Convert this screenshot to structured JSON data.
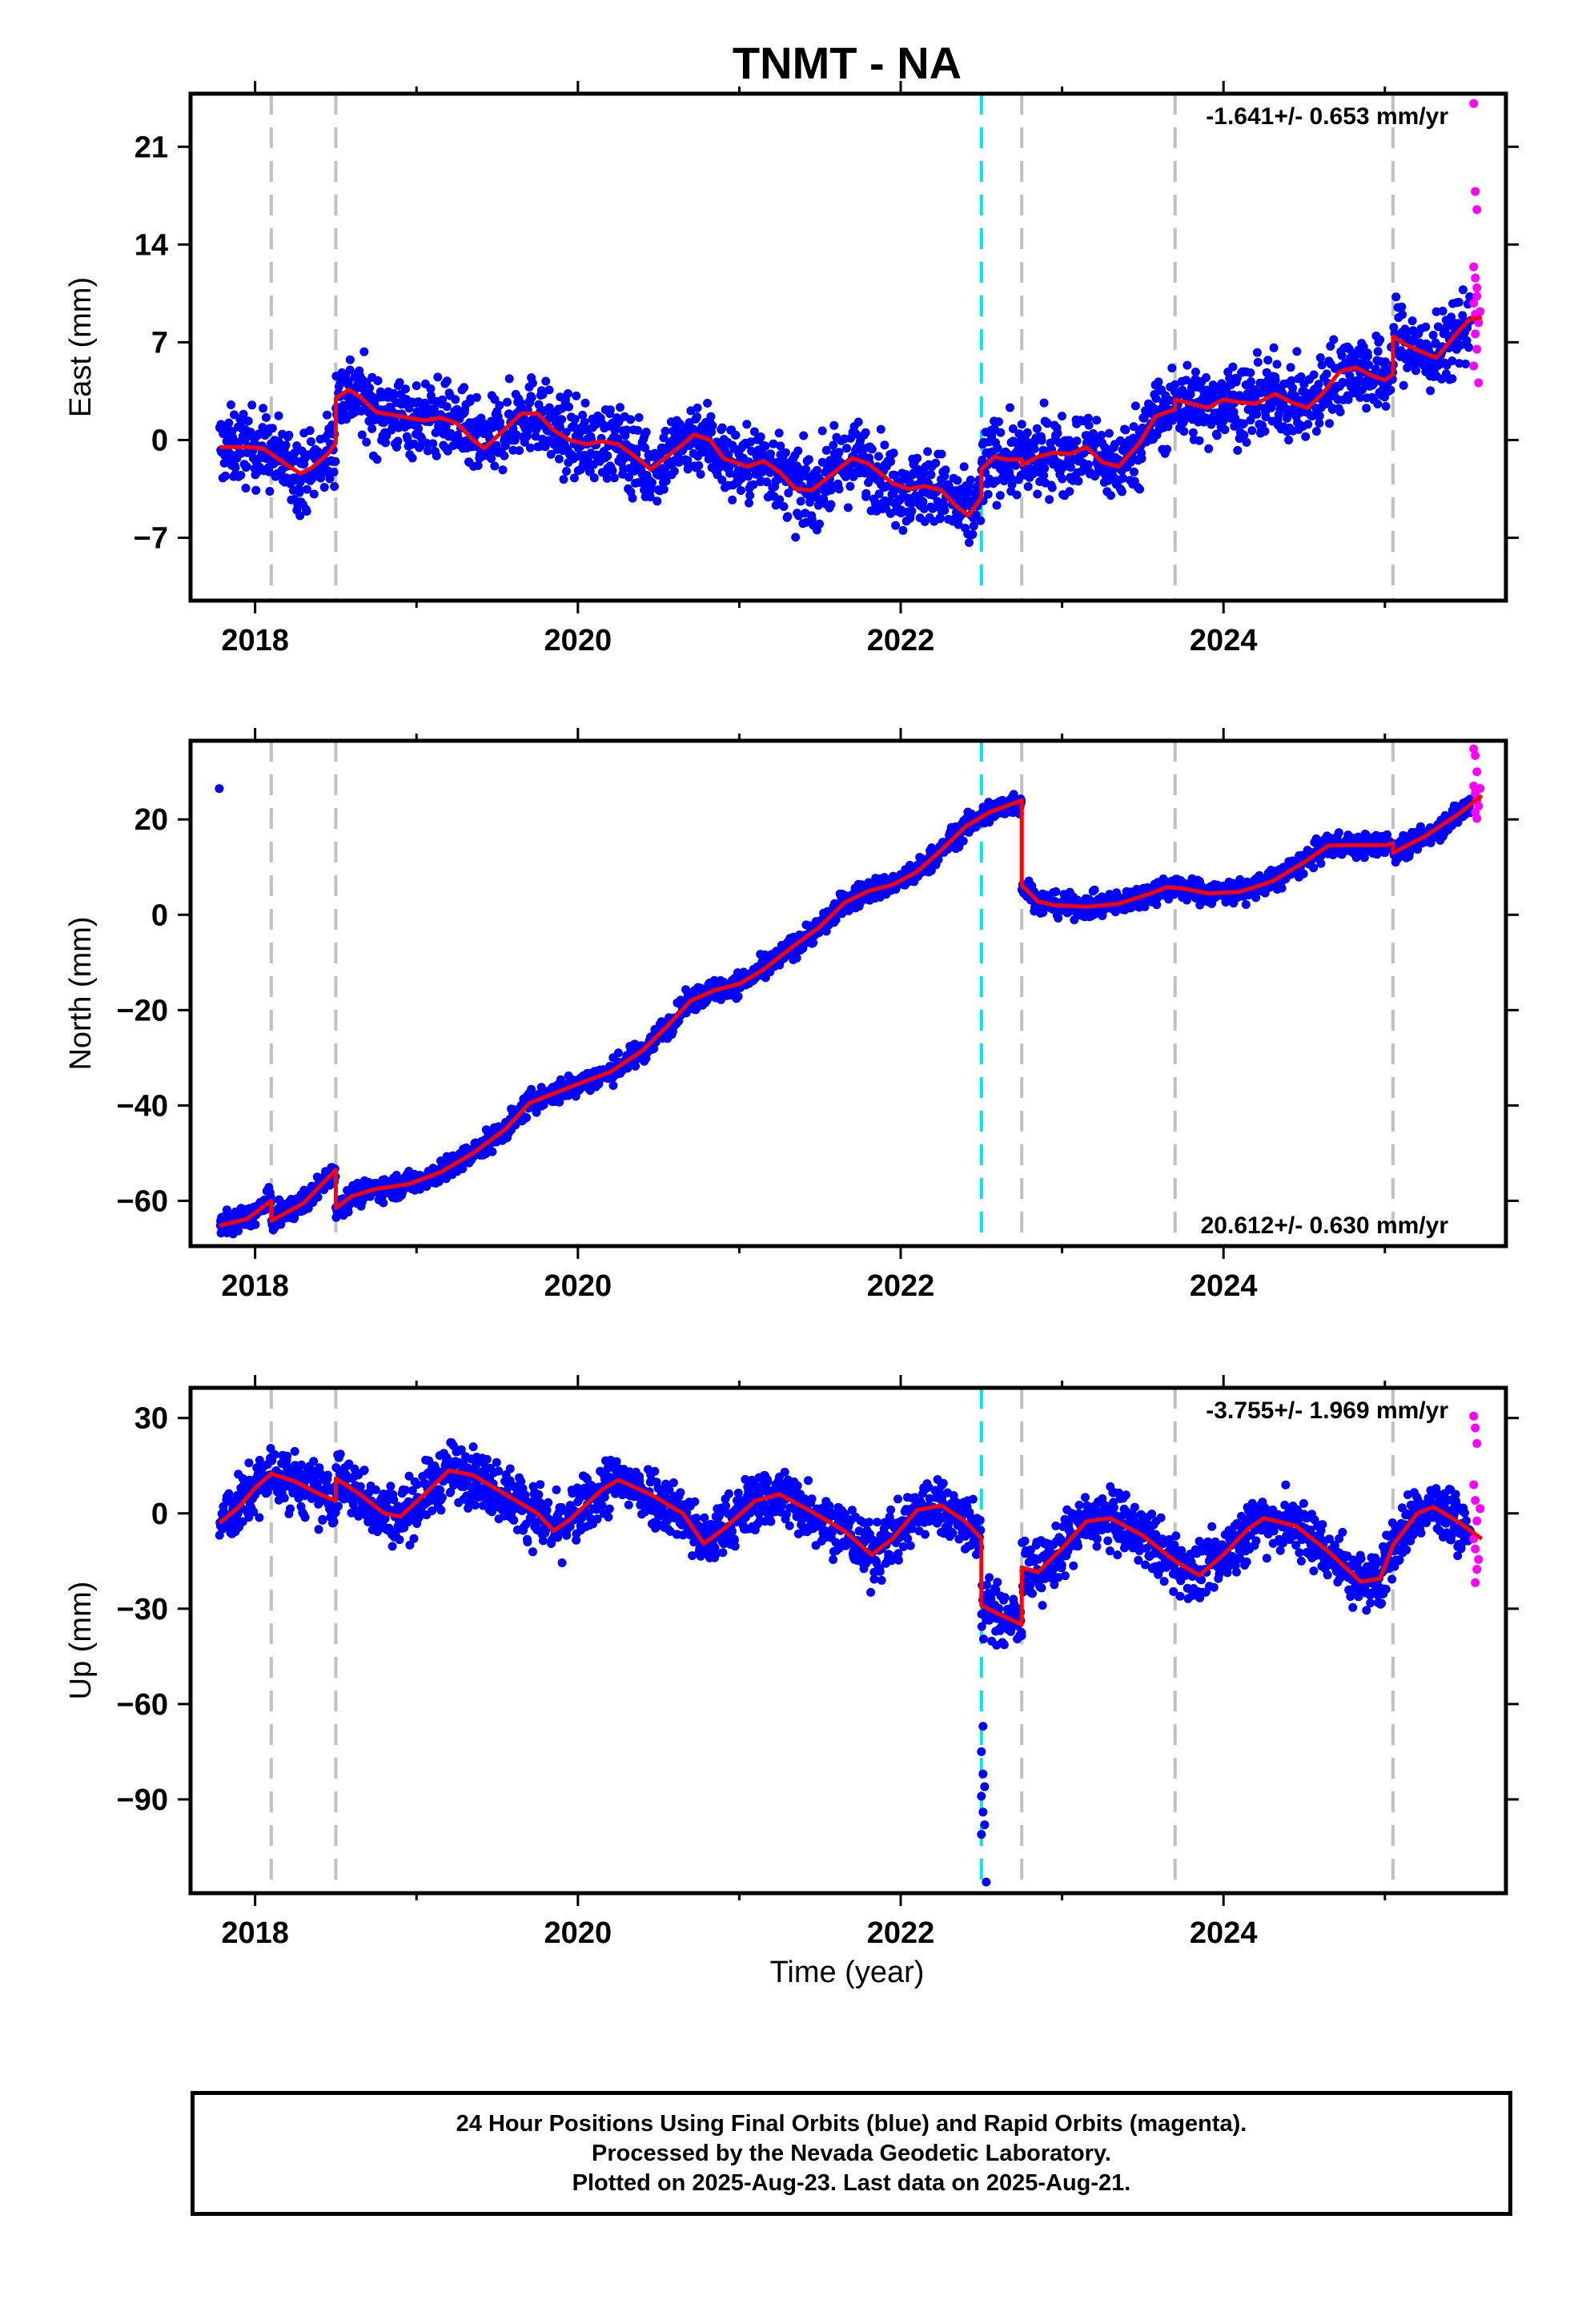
{
  "title": "TNMT - NA",
  "xlabel": "Time (year)",
  "caption": {
    "line1": "24 Hour Positions Using Final Orbits (blue) and Rapid Orbits (magenta).",
    "line2": "Processed by the Nevada Geodetic Laboratory.",
    "line3": "Plotted on 2025-Aug-23. Last data on 2025-Aug-21."
  },
  "colors": {
    "final_orbits": "#0000ff",
    "rapid_orbits": "#ff00ff",
    "model": "#ff0000",
    "equipment_change_line": "#c0c0c0",
    "event_line": "#00e5ee"
  },
  "chart_data": [
    {
      "type": "scatter",
      "component": "East",
      "ylabel": "East (mm)",
      "xlim": [
        2017.6,
        2025.75
      ],
      "ylim": [
        -11.5,
        24.8
      ],
      "xticks": [
        2018,
        2020,
        2022,
        2024
      ],
      "yticks": [
        -7,
        0,
        7,
        14,
        21
      ],
      "velocity_label": "-1.641+/- 0.653 mm/yr",
      "velocity_position": "top-right",
      "grid": false,
      "gray_dashed_lines": [
        2018.1,
        2018.5,
        2022.75,
        2023.7,
        2025.05
      ],
      "cyan_dashed_lines": [
        2022.5
      ],
      "model_line": [
        [
          2017.78,
          -0.5
        ],
        [
          2017.95,
          -0.5
        ],
        [
          2018.05,
          -0.6
        ],
        [
          2018.1,
          -1.0
        ],
        [
          2018.2,
          -1.8
        ],
        [
          2018.28,
          -2.4
        ],
        [
          2018.35,
          -2.0
        ],
        [
          2018.45,
          -1.0
        ],
        [
          2018.5,
          -0.2
        ],
        [
          2018.5,
          3.0
        ],
        [
          2018.58,
          3.6
        ],
        [
          2018.65,
          3.1
        ],
        [
          2018.75,
          2.0
        ],
        [
          2018.9,
          1.7
        ],
        [
          2019.05,
          1.4
        ],
        [
          2019.15,
          1.6
        ],
        [
          2019.25,
          1.2
        ],
        [
          2019.35,
          0.0
        ],
        [
          2019.42,
          -0.6
        ],
        [
          2019.55,
          0.8
        ],
        [
          2019.65,
          1.9
        ],
        [
          2019.75,
          1.9
        ],
        [
          2019.85,
          0.7
        ],
        [
          2019.95,
          0.0
        ],
        [
          2020.05,
          -0.3
        ],
        [
          2020.15,
          -0.1
        ],
        [
          2020.25,
          -0.3
        ],
        [
          2020.38,
          -1.4
        ],
        [
          2020.45,
          -2.1
        ],
        [
          2020.55,
          -1.2
        ],
        [
          2020.65,
          -0.3
        ],
        [
          2020.72,
          0.4
        ],
        [
          2020.82,
          0.0
        ],
        [
          2020.9,
          -1.3
        ],
        [
          2021.05,
          -1.9
        ],
        [
          2021.15,
          -1.5
        ],
        [
          2021.25,
          -2.3
        ],
        [
          2021.35,
          -3.5
        ],
        [
          2021.45,
          -3.6
        ],
        [
          2021.6,
          -2.2
        ],
        [
          2021.7,
          -1.3
        ],
        [
          2021.8,
          -1.7
        ],
        [
          2021.95,
          -3.1
        ],
        [
          2022.05,
          -3.5
        ],
        [
          2022.15,
          -3.3
        ],
        [
          2022.25,
          -3.6
        ],
        [
          2022.35,
          -4.8
        ],
        [
          2022.42,
          -5.4
        ],
        [
          2022.5,
          -4.1
        ],
        [
          2022.5,
          -2.1
        ],
        [
          2022.58,
          -1.2
        ],
        [
          2022.66,
          -1.4
        ],
        [
          2022.75,
          -1.4
        ],
        [
          2022.75,
          -1.8
        ],
        [
          2022.85,
          -1.2
        ],
        [
          2022.95,
          -0.9
        ],
        [
          2023.05,
          -1.0
        ],
        [
          2023.15,
          -0.5
        ],
        [
          2023.25,
          -1.6
        ],
        [
          2023.35,
          -1.9
        ],
        [
          2023.48,
          -0.2
        ],
        [
          2023.58,
          1.7
        ],
        [
          2023.7,
          2.2
        ],
        [
          2023.7,
          2.9
        ],
        [
          2023.8,
          2.6
        ],
        [
          2023.9,
          2.3
        ],
        [
          2024.0,
          2.9
        ],
        [
          2024.1,
          2.7
        ],
        [
          2024.2,
          2.6
        ],
        [
          2024.32,
          3.3
        ],
        [
          2024.42,
          2.7
        ],
        [
          2024.52,
          2.3
        ],
        [
          2024.62,
          3.4
        ],
        [
          2024.72,
          4.9
        ],
        [
          2024.82,
          5.2
        ],
        [
          2024.92,
          4.6
        ],
        [
          2025.0,
          4.3
        ],
        [
          2025.05,
          4.7
        ],
        [
          2025.05,
          7.4
        ],
        [
          2025.15,
          6.7
        ],
        [
          2025.25,
          6.2
        ],
        [
          2025.32,
          5.9
        ],
        [
          2025.42,
          7.3
        ],
        [
          2025.52,
          8.6
        ],
        [
          2025.6,
          8.8
        ]
      ],
      "rapid_orbit_points": [
        [
          2025.55,
          24.1
        ],
        [
          2025.56,
          17.8
        ],
        [
          2025.57,
          16.5
        ],
        [
          2025.55,
          12.4
        ],
        [
          2025.56,
          11.6
        ],
        [
          2025.57,
          10.9
        ],
        [
          2025.55,
          9.8
        ],
        [
          2025.56,
          9.0
        ],
        [
          2025.58,
          8.4
        ],
        [
          2025.56,
          7.6
        ],
        [
          2025.57,
          6.5
        ],
        [
          2025.55,
          5.3
        ],
        [
          2025.58,
          4.1
        ],
        [
          2025.57,
          10.3
        ],
        [
          2025.59,
          9.2
        ]
      ],
      "final_orbit_trend": {
        "x_start": 2017.78,
        "x_end": 2025.53,
        "seasonal_amplitude": 1.8,
        "scatter": 1.9
      }
    },
    {
      "type": "scatter",
      "component": "North",
      "ylabel": "North (mm)",
      "xlim": [
        2017.6,
        2025.75
      ],
      "ylim": [
        -69.5,
        36.5
      ],
      "xticks": [
        2018,
        2020,
        2022,
        2024
      ],
      "yticks": [
        -60,
        -40,
        -20,
        0,
        20
      ],
      "velocity_label": "20.612+/- 0.630 mm/yr",
      "velocity_position": "bottom-right",
      "grid": false,
      "gray_dashed_lines": [
        2018.1,
        2018.5,
        2022.75,
        2023.7,
        2025.05
      ],
      "cyan_dashed_lines": [
        2022.5
      ],
      "model_line": [
        [
          2017.78,
          -65.2
        ],
        [
          2017.95,
          -63.8
        ],
        [
          2018.1,
          -60.0
        ],
        [
          2018.1,
          -64.2
        ],
        [
          2018.3,
          -60.5
        ],
        [
          2018.5,
          -53.5
        ],
        [
          2018.5,
          -61.5
        ],
        [
          2018.6,
          -59.0
        ],
        [
          2018.75,
          -57.5
        ],
        [
          2018.95,
          -56.5
        ],
        [
          2019.15,
          -54.0
        ],
        [
          2019.35,
          -50.0
        ],
        [
          2019.55,
          -45.0
        ],
        [
          2019.7,
          -39.5
        ],
        [
          2019.85,
          -37.5
        ],
        [
          2020.0,
          -35.5
        ],
        [
          2020.2,
          -33.0
        ],
        [
          2020.4,
          -28.5
        ],
        [
          2020.55,
          -23.5
        ],
        [
          2020.7,
          -18.0
        ],
        [
          2020.85,
          -15.8
        ],
        [
          2021.0,
          -14.5
        ],
        [
          2021.15,
          -11.5
        ],
        [
          2021.3,
          -7.5
        ],
        [
          2021.5,
          -2.5
        ],
        [
          2021.65,
          2.5
        ],
        [
          2021.8,
          5.0
        ],
        [
          2021.95,
          6.3
        ],
        [
          2022.1,
          9.0
        ],
        [
          2022.25,
          13.5
        ],
        [
          2022.4,
          18.5
        ],
        [
          2022.55,
          21.5
        ],
        [
          2022.75,
          24.0
        ],
        [
          2022.75,
          6.2
        ],
        [
          2022.85,
          2.8
        ],
        [
          2022.95,
          2.0
        ],
        [
          2023.15,
          1.7
        ],
        [
          2023.35,
          2.3
        ],
        [
          2023.55,
          4.5
        ],
        [
          2023.65,
          5.8
        ],
        [
          2023.75,
          5.5
        ],
        [
          2023.9,
          4.5
        ],
        [
          2024.1,
          4.8
        ],
        [
          2024.3,
          7.0
        ],
        [
          2024.5,
          11.0
        ],
        [
          2024.65,
          14.5
        ],
        [
          2024.8,
          14.6
        ],
        [
          2025.0,
          14.6
        ],
        [
          2025.05,
          15.0
        ],
        [
          2025.05,
          13.0
        ],
        [
          2025.25,
          16.5
        ],
        [
          2025.45,
          21.0
        ],
        [
          2025.6,
          25.0
        ]
      ],
      "rapid_orbit_points": [
        [
          2025.55,
          34.8
        ],
        [
          2025.56,
          33.4
        ],
        [
          2025.57,
          30.0
        ],
        [
          2025.55,
          27.0
        ],
        [
          2025.56,
          25.5
        ],
        [
          2025.57,
          24.0
        ],
        [
          2025.58,
          22.8
        ],
        [
          2025.56,
          21.5
        ],
        [
          2025.57,
          20.2
        ],
        [
          2025.59,
          26.5
        ]
      ],
      "final_orbit_trend": {
        "x_start": 2017.78,
        "x_end": 2025.53,
        "seasonal_amplitude": 1.5,
        "scatter": 1.7
      }
    },
    {
      "type": "scatter",
      "component": "Up",
      "ylabel": "Up (mm)",
      "xlim": [
        2017.6,
        2025.75
      ],
      "ylim": [
        -119.5,
        39.5
      ],
      "xticks": [
        2018,
        2020,
        2022,
        2024
      ],
      "yticks": [
        -90,
        -60,
        -30,
        0,
        30
      ],
      "velocity_label": "-3.755+/- 1.969 mm/yr",
      "velocity_position": "top-right",
      "grid": false,
      "gray_dashed_lines": [
        2018.1,
        2018.5,
        2022.75,
        2023.7,
        2025.05
      ],
      "cyan_dashed_lines": [
        2022.5
      ],
      "model_line": [
        [
          2017.78,
          -3.0
        ],
        [
          2017.9,
          2.0
        ],
        [
          2018.0,
          8.0
        ],
        [
          2018.1,
          12.5
        ],
        [
          2018.25,
          10.0
        ],
        [
          2018.4,
          6.0
        ],
        [
          2018.5,
          4.0
        ],
        [
          2018.5,
          11.0
        ],
        [
          2018.65,
          6.0
        ],
        [
          2018.8,
          0.0
        ],
        [
          2018.9,
          -1.0
        ],
        [
          2019.05,
          6.0
        ],
        [
          2019.2,
          13.5
        ],
        [
          2019.35,
          12.0
        ],
        [
          2019.55,
          6.0
        ],
        [
          2019.75,
          0.0
        ],
        [
          2019.85,
          -5.5
        ],
        [
          2019.95,
          -2.0
        ],
        [
          2020.15,
          7.5
        ],
        [
          2020.25,
          10.5
        ],
        [
          2020.45,
          6.0
        ],
        [
          2020.65,
          0.0
        ],
        [
          2020.78,
          -9.5
        ],
        [
          2020.9,
          -5.0
        ],
        [
          2021.1,
          4.0
        ],
        [
          2021.25,
          6.0
        ],
        [
          2021.45,
          0.5
        ],
        [
          2021.65,
          -5.5
        ],
        [
          2021.82,
          -13.0
        ],
        [
          2021.95,
          -8.0
        ],
        [
          2022.1,
          1.0
        ],
        [
          2022.25,
          2.5
        ],
        [
          2022.4,
          -2.5
        ],
        [
          2022.5,
          -8.0
        ],
        [
          2022.5,
          -29.0
        ],
        [
          2022.6,
          -31.5
        ],
        [
          2022.75,
          -35.0
        ],
        [
          2022.75,
          -17.0
        ],
        [
          2022.85,
          -18.5
        ],
        [
          2023.0,
          -11.0
        ],
        [
          2023.15,
          -2.5
        ],
        [
          2023.3,
          -1.5
        ],
        [
          2023.5,
          -7.0
        ],
        [
          2023.7,
          -15.0
        ],
        [
          2023.85,
          -19.5
        ],
        [
          2024.0,
          -13.0
        ],
        [
          2024.15,
          -5.0
        ],
        [
          2024.25,
          -1.5
        ],
        [
          2024.45,
          -4.0
        ],
        [
          2024.65,
          -12.0
        ],
        [
          2024.85,
          -21.5
        ],
        [
          2024.97,
          -20.5
        ],
        [
          2025.05,
          -10.0
        ],
        [
          2025.2,
          0.0
        ],
        [
          2025.3,
          2.0
        ],
        [
          2025.45,
          -2.5
        ],
        [
          2025.6,
          -8.0
        ]
      ],
      "rapid_orbit_points": [
        [
          2025.55,
          30.6
        ],
        [
          2025.56,
          26.9
        ],
        [
          2025.57,
          22.0
        ],
        [
          2025.55,
          9.0
        ],
        [
          2025.56,
          4.1
        ],
        [
          2025.57,
          -2.4
        ],
        [
          2025.55,
          -8.0
        ],
        [
          2025.56,
          -11.2
        ],
        [
          2025.58,
          -14.5
        ],
        [
          2025.57,
          -17.6
        ],
        [
          2025.56,
          -21.8
        ],
        [
          2025.59,
          1.5
        ]
      ],
      "outlier_points": [
        [
          2022.5,
          -75.0
        ],
        [
          2022.51,
          -82.0
        ],
        [
          2022.52,
          -86.0
        ],
        [
          2022.5,
          -89.0
        ],
        [
          2022.51,
          -94.0
        ],
        [
          2022.52,
          -98.0
        ],
        [
          2022.5,
          -101.0
        ],
        [
          2022.53,
          -116.0
        ],
        [
          2022.51,
          -67.0
        ]
      ],
      "final_orbit_trend": {
        "x_start": 2017.78,
        "x_end": 2025.53,
        "seasonal_amplitude": 5,
        "scatter": 6.5
      }
    }
  ]
}
